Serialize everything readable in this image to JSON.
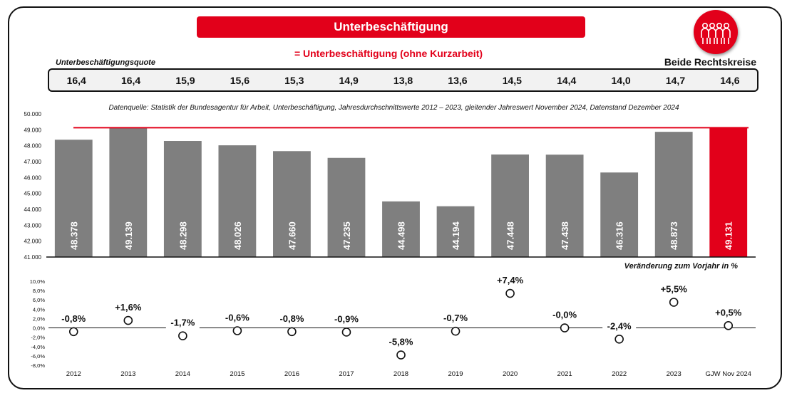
{
  "header": {
    "title": "Unterbeschäftigung",
    "subtitle": "= Unterbeschäftigung (ohne Kurzarbeit)",
    "quote_label": "Unterbeschäftigungsquote",
    "region_label": "Beide Rechtskreise",
    "logo_icon": "people-group-icon"
  },
  "quotes": [
    "16,4",
    "16,4",
    "15,9",
    "15,6",
    "15,3",
    "14,9",
    "13,8",
    "13,6",
    "14,5",
    "14,4",
    "14,0",
    "14,7",
    "14,6"
  ],
  "source_note": "Datenquelle: Statistik der Bundesagentur für Arbeit, Unterbeschäftigung, Jahresdurchschnittswerte 2012 – 2023, gleitender Jahreswert November 2024, Datenstand Dezember 2024",
  "change_label": "Veränderung zum Vorjahr in %",
  "colors": {
    "accent": "#e2001a",
    "bar": "#7f7f7f",
    "quote_bg": "#f2f2f2"
  },
  "chart_data": [
    {
      "type": "bar",
      "categories": [
        "2012",
        "2013",
        "2014",
        "2015",
        "2016",
        "2017",
        "2018",
        "2019",
        "2020",
        "2021",
        "2022",
        "2023",
        "GJW Nov 2024"
      ],
      "values": [
        48378,
        49139,
        48298,
        48026,
        47660,
        47235,
        44498,
        44194,
        47448,
        47438,
        46316,
        48873,
        49131
      ],
      "value_labels": [
        "48.378",
        "49.139",
        "48.298",
        "48.026",
        "47.660",
        "47.235",
        "44.498",
        "44.194",
        "47.448",
        "47.438",
        "46.316",
        "48.873",
        "49.131"
      ],
      "highlight_index": 12,
      "reference_line": 49131,
      "ylim": [
        41000,
        50000
      ],
      "yticks": [
        {
          "value": 41000,
          "label": "41.000"
        },
        {
          "value": 42000,
          "label": "42.000"
        },
        {
          "value": 43000,
          "label": "43.000"
        },
        {
          "value": 44000,
          "label": "44.000"
        },
        {
          "value": 45000,
          "label": "45.000"
        },
        {
          "value": 46000,
          "label": "46.000"
        },
        {
          "value": 47000,
          "label": "47.000"
        },
        {
          "value": 48000,
          "label": "48.000"
        },
        {
          "value": 49000,
          "label": "49.000"
        },
        {
          "value": 50000,
          "label": "50.000"
        }
      ],
      "grid": false
    },
    {
      "type": "scatter",
      "categories": [
        "2012",
        "2013",
        "2014",
        "2015",
        "2016",
        "2017",
        "2018",
        "2019",
        "2020",
        "2021",
        "2022",
        "2023",
        "GJW Nov 2024"
      ],
      "values": [
        -0.8,
        1.6,
        -1.7,
        -0.6,
        -0.8,
        -0.9,
        -5.8,
        -0.7,
        7.4,
        -0.0,
        -2.4,
        5.5,
        0.5
      ],
      "value_labels": [
        "-0,8%",
        "+1,6%",
        "-1,7%",
        "-0,6%",
        "-0,8%",
        "-0,9%",
        "-5,8%",
        "-0,7%",
        "+7,4%",
        "-0,0%",
        "-2,4%",
        "+5,5%",
        "+0,5%"
      ],
      "ylim": [
        -8,
        10
      ],
      "yticks": [
        {
          "value": 10,
          "label": "10,0%"
        },
        {
          "value": 8,
          "label": "8,0%"
        },
        {
          "value": 6,
          "label": "6,0%"
        },
        {
          "value": 4,
          "label": "4,0%"
        },
        {
          "value": 2,
          "label": "2,0%"
        },
        {
          "value": 0,
          "label": "0,0%"
        },
        {
          "value": -2,
          "label": "-2,0%"
        },
        {
          "value": -4,
          "label": "-4,0%"
        },
        {
          "value": -6,
          "label": "-6,0%"
        },
        {
          "value": -8,
          "label": "-8,0%"
        }
      ],
      "grid": false
    }
  ]
}
